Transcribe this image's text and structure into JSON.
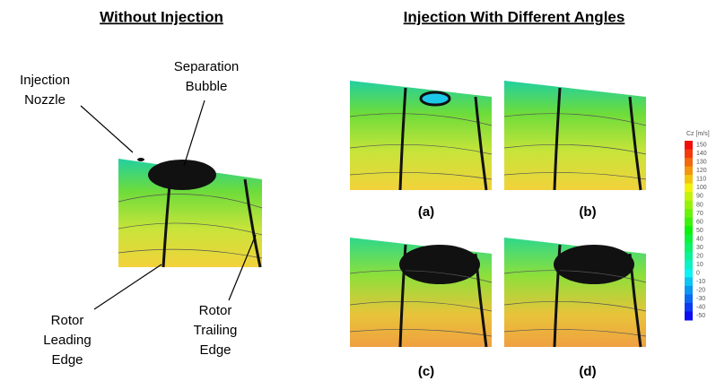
{
  "titles": {
    "left": "Without Injection",
    "right": "Injection With Different Angles"
  },
  "labels": {
    "nozzle": [
      "Injection",
      "Nozzle"
    ],
    "bubble": [
      "Separation",
      "Bubble"
    ],
    "leading": [
      "Rotor",
      "Leading",
      "Edge"
    ],
    "trailing": [
      "Rotor",
      "Trailing",
      "Edge"
    ]
  },
  "panels": [
    "(a)",
    "(b)",
    "(c)",
    "(d)"
  ],
  "colorbar": {
    "title": "Cz [m/s]",
    "labels": [
      "150",
      "140",
      "130",
      "120",
      "110",
      "100",
      "90",
      "80",
      "70",
      "60",
      "50",
      "40",
      "30",
      "20",
      "10",
      "0",
      "-10",
      "-20",
      "-30",
      "-40",
      "-50"
    ]
  }
}
